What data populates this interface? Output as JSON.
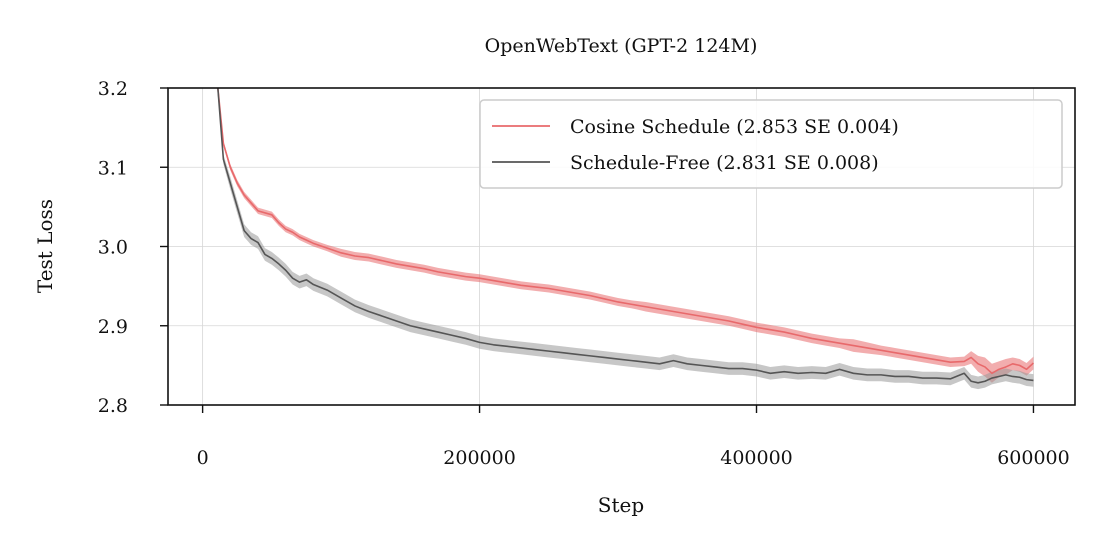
{
  "chart_data": {
    "type": "line",
    "title": "OpenWebText (GPT-2 124M)",
    "xlabel": "Step",
    "ylabel": "Test Loss",
    "xlim": [
      -25000,
      630000
    ],
    "ylim": [
      2.8,
      3.2
    ],
    "xticks": [
      0,
      200000,
      400000,
      600000
    ],
    "xtick_labels": [
      "0",
      "200000",
      "400000",
      "600000"
    ],
    "yticks": [
      2.8,
      2.9,
      3.0,
      3.1,
      3.2
    ],
    "ytick_labels": [
      "2.8",
      "2.9",
      "3.0",
      "3.1",
      "3.2"
    ],
    "grid": true,
    "legend_position": "top-right",
    "series": [
      {
        "name": "Cosine Schedule (2.853 SE 0.004)",
        "color": "#e8696b",
        "band_color": "#e8696b",
        "x": [
          11000,
          15000,
          20000,
          25000,
          30000,
          35000,
          40000,
          50000,
          55000,
          60000,
          65000,
          70000,
          75000,
          80000,
          90000,
          100000,
          110000,
          120000,
          130000,
          140000,
          150000,
          160000,
          170000,
          180000,
          190000,
          200000,
          210000,
          220000,
          230000,
          240000,
          250000,
          260000,
          270000,
          280000,
          290000,
          300000,
          310000,
          320000,
          330000,
          340000,
          350000,
          360000,
          370000,
          380000,
          390000,
          400000,
          410000,
          420000,
          430000,
          440000,
          450000,
          460000,
          470000,
          480000,
          490000,
          500000,
          510000,
          520000,
          530000,
          540000,
          550000,
          555000,
          560000,
          565000,
          570000,
          575000,
          580000,
          585000,
          590000,
          595000,
          600000
        ],
        "y": [
          3.2,
          3.13,
          3.1,
          3.08,
          3.065,
          3.055,
          3.045,
          3.04,
          3.03,
          3.022,
          3.018,
          3.012,
          3.008,
          3.004,
          2.998,
          2.992,
          2.988,
          2.986,
          2.982,
          2.978,
          2.975,
          2.972,
          2.968,
          2.965,
          2.962,
          2.96,
          2.957,
          2.954,
          2.951,
          2.949,
          2.947,
          2.944,
          2.941,
          2.938,
          2.934,
          2.93,
          2.927,
          2.924,
          2.921,
          2.918,
          2.915,
          2.912,
          2.909,
          2.906,
          2.902,
          2.898,
          2.895,
          2.892,
          2.888,
          2.884,
          2.881,
          2.878,
          2.875,
          2.872,
          2.869,
          2.866,
          2.863,
          2.86,
          2.857,
          2.854,
          2.855,
          2.86,
          2.852,
          2.848,
          2.84,
          2.845,
          2.848,
          2.852,
          2.85,
          2.845,
          2.853
        ],
        "band": [
          0.002,
          0.003,
          0.004,
          0.004,
          0.004,
          0.004,
          0.004,
          0.004,
          0.004,
          0.004,
          0.004,
          0.004,
          0.004,
          0.004,
          0.004,
          0.005,
          0.005,
          0.005,
          0.005,
          0.005,
          0.005,
          0.005,
          0.005,
          0.005,
          0.005,
          0.005,
          0.005,
          0.005,
          0.005,
          0.005,
          0.005,
          0.005,
          0.005,
          0.005,
          0.005,
          0.005,
          0.005,
          0.006,
          0.006,
          0.006,
          0.006,
          0.006,
          0.006,
          0.006,
          0.006,
          0.006,
          0.006,
          0.006,
          0.006,
          0.006,
          0.006,
          0.006,
          0.008,
          0.007,
          0.006,
          0.006,
          0.006,
          0.006,
          0.006,
          0.006,
          0.006,
          0.008,
          0.01,
          0.012,
          0.012,
          0.01,
          0.01,
          0.008,
          0.008,
          0.008,
          0.008
        ]
      },
      {
        "name": "Schedule-Free (2.831 SE 0.008)",
        "color": "#555555",
        "band_color": "#999999",
        "x": [
          11000,
          15000,
          20000,
          25000,
          30000,
          35000,
          40000,
          45000,
          50000,
          55000,
          60000,
          65000,
          70000,
          75000,
          80000,
          90000,
          100000,
          110000,
          120000,
          130000,
          140000,
          150000,
          160000,
          170000,
          180000,
          190000,
          200000,
          210000,
          220000,
          230000,
          240000,
          250000,
          260000,
          270000,
          280000,
          290000,
          300000,
          310000,
          320000,
          330000,
          340000,
          350000,
          360000,
          370000,
          380000,
          390000,
          400000,
          410000,
          420000,
          430000,
          440000,
          450000,
          460000,
          470000,
          480000,
          490000,
          500000,
          510000,
          520000,
          530000,
          540000,
          550000,
          555000,
          560000,
          565000,
          570000,
          575000,
          580000,
          585000,
          590000,
          595000,
          600000
        ],
        "y": [
          3.2,
          3.11,
          3.08,
          3.05,
          3.02,
          3.01,
          3.005,
          2.99,
          2.985,
          2.978,
          2.97,
          2.96,
          2.955,
          2.958,
          2.952,
          2.945,
          2.935,
          2.925,
          2.918,
          2.912,
          2.906,
          2.9,
          2.896,
          2.892,
          2.888,
          2.884,
          2.879,
          2.876,
          2.874,
          2.872,
          2.87,
          2.868,
          2.866,
          2.864,
          2.862,
          2.86,
          2.858,
          2.856,
          2.854,
          2.852,
          2.856,
          2.852,
          2.85,
          2.848,
          2.846,
          2.846,
          2.844,
          2.84,
          2.842,
          2.84,
          2.841,
          2.84,
          2.845,
          2.84,
          2.838,
          2.838,
          2.836,
          2.836,
          2.834,
          2.834,
          2.833,
          2.84,
          2.83,
          2.828,
          2.83,
          2.834,
          2.836,
          2.838,
          2.836,
          2.835,
          2.832,
          2.831
        ],
        "band": [
          0.003,
          0.006,
          0.008,
          0.008,
          0.008,
          0.008,
          0.008,
          0.008,
          0.008,
          0.008,
          0.008,
          0.008,
          0.008,
          0.008,
          0.008,
          0.008,
          0.008,
          0.008,
          0.008,
          0.008,
          0.008,
          0.008,
          0.008,
          0.008,
          0.008,
          0.008,
          0.008,
          0.008,
          0.008,
          0.008,
          0.008,
          0.008,
          0.008,
          0.008,
          0.008,
          0.008,
          0.008,
          0.008,
          0.008,
          0.008,
          0.008,
          0.008,
          0.008,
          0.008,
          0.008,
          0.008,
          0.008,
          0.008,
          0.008,
          0.008,
          0.008,
          0.008,
          0.008,
          0.008,
          0.008,
          0.008,
          0.008,
          0.008,
          0.008,
          0.008,
          0.008,
          0.008,
          0.008,
          0.008,
          0.008,
          0.008,
          0.008,
          0.008,
          0.008,
          0.008,
          0.008,
          0.008
        ]
      }
    ]
  }
}
